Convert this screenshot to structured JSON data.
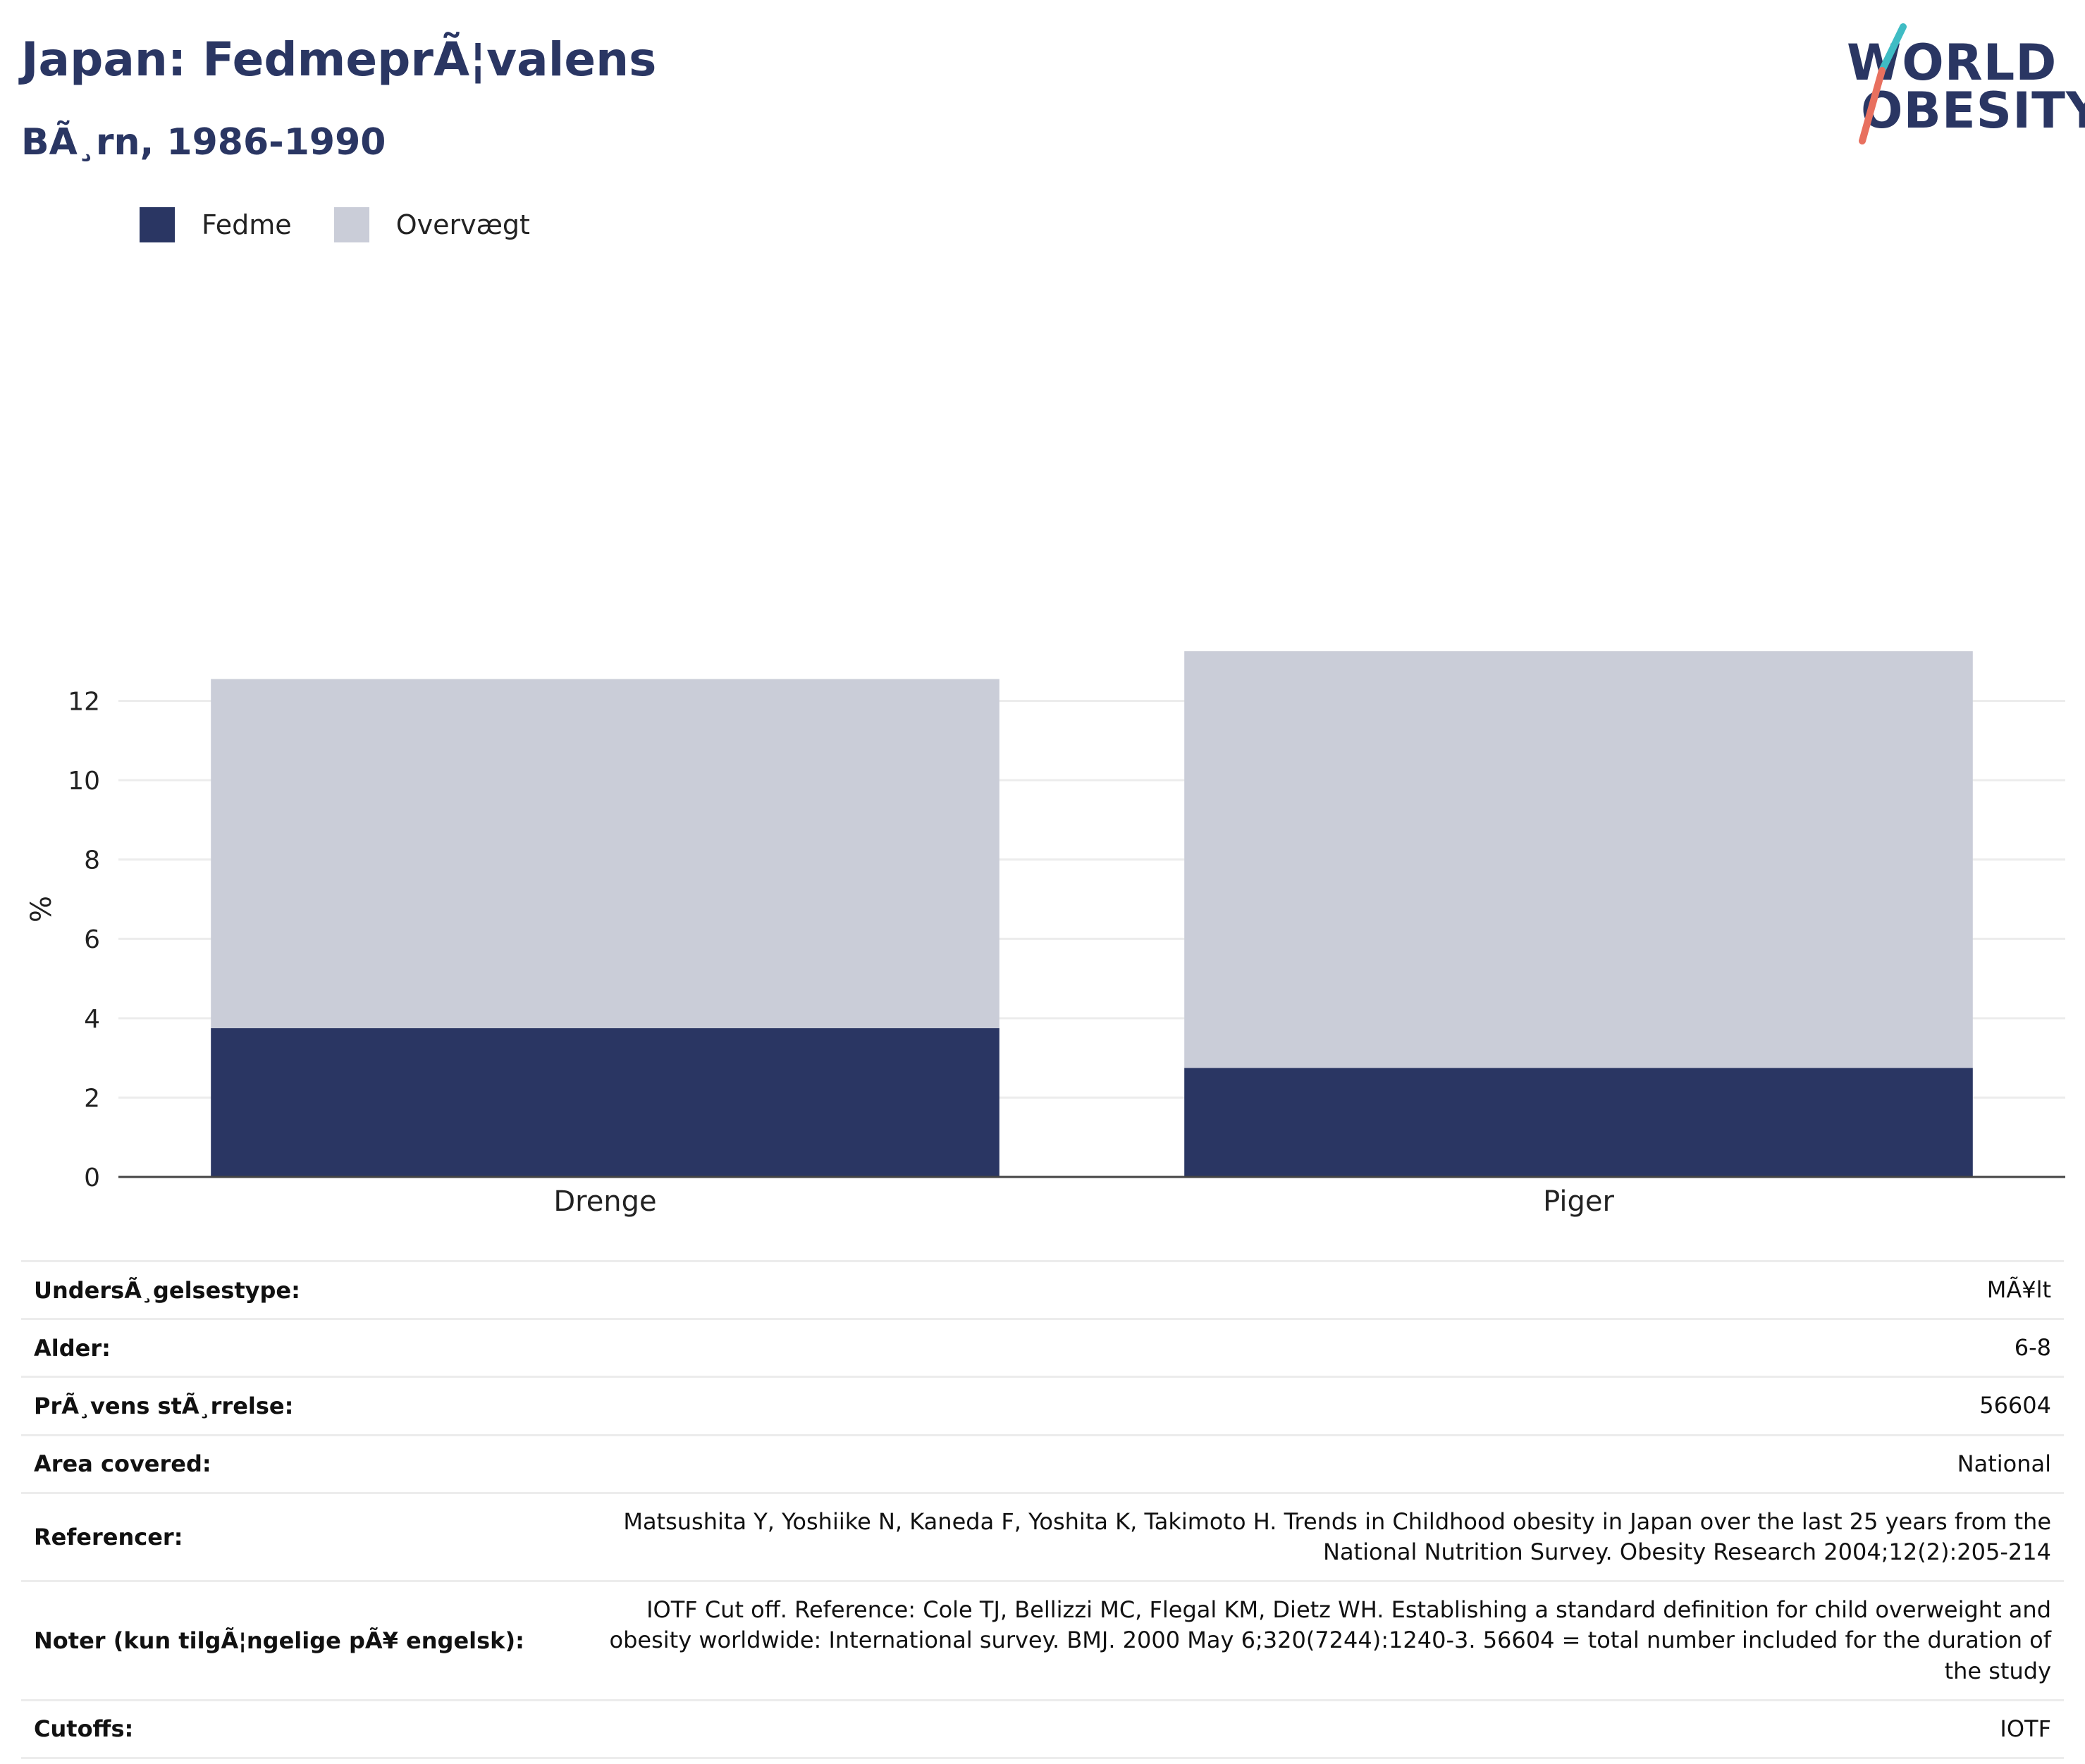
{
  "header": {
    "title": "Japan: FedmeprÃ¦valens",
    "subtitle": "BÃ¸rn, 1986-1990"
  },
  "logo": {
    "line1": "WORLD",
    "line2": "OBESITY"
  },
  "colors": {
    "obesity": "#2a3663",
    "overweight": "#cacdd8",
    "axis": "#444444",
    "grid": "#ececec"
  },
  "chart_data": {
    "type": "bar",
    "stacked": true,
    "categories": [
      "Drenge",
      "Piger"
    ],
    "series": [
      {
        "name": "Fedme",
        "values": [
          3.75,
          2.75
        ]
      },
      {
        "name": "Overvægt",
        "values": [
          8.8,
          10.5
        ]
      }
    ],
    "ylabel": "%",
    "ylim": [
      0,
      13.5
    ],
    "yticks": [
      0,
      2,
      4,
      6,
      8,
      10,
      12
    ],
    "grid": true,
    "legend": "top-left"
  },
  "info": [
    {
      "label": "UndersÃ¸gelsestype:",
      "value": "MÃ¥lt"
    },
    {
      "label": "Alder:",
      "value": "6-8"
    },
    {
      "label": "PrÃ¸vens stÃ¸rrelse:",
      "value": "56604"
    },
    {
      "label": "Area covered:",
      "value": "National"
    },
    {
      "label": "Referencer:",
      "value": "Matsushita Y, Yoshiike N, Kaneda F, Yoshita K, Takimoto H. Trends in Childhood obesity in Japan over the last 25 years from the National Nutrition Survey. Obesity Research 2004;12(2):205-214"
    },
    {
      "label": "Noter (kun tilgÃ¦ngelige pÃ¥ engelsk):",
      "value": "IOTF Cut off. Reference: Cole TJ, Bellizzi MC, Flegal KM, Dietz WH. Establishing a standard definition for child overweight and obesity worldwide: International survey. BMJ. 2000 May 6;320(7244):1240-3. 56604 = total number included for the duration of the study"
    },
    {
      "label": "Cutoffs:",
      "value": "IOTF"
    }
  ]
}
